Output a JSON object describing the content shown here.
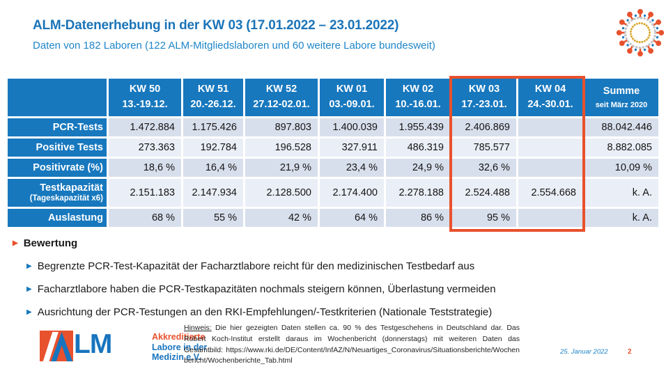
{
  "slide": {
    "title": "ALM-Datenerhebung in der KW 03 (17.01.2022 – 23.01.2022)",
    "subtitle": "Daten von 182 Laboren (122 ALM-Mitgliedslaboren und 60 weitere Labore bundesweit)"
  },
  "table": {
    "columns": [
      {
        "week": "KW 50",
        "dates": "13.-19.12."
      },
      {
        "week": "KW 51",
        "dates": "20.-26.12."
      },
      {
        "week": "KW 52",
        "dates": "27.12-02.01."
      },
      {
        "week": "KW 01",
        "dates": "03.-09.01."
      },
      {
        "week": "KW 02",
        "dates": "10.-16.01."
      },
      {
        "week": "KW 03",
        "dates": "17.-23.01."
      },
      {
        "week": "KW 04",
        "dates": "24.-30.01."
      },
      {
        "week": "Summe",
        "dates": "seit März 2020"
      }
    ],
    "rows": [
      {
        "label": "PCR-Tests",
        "values": [
          "1.472.884",
          "1.175.426",
          "897.803",
          "1.400.039",
          "1.955.439",
          "2.406.869",
          "",
          "88.042.446"
        ]
      },
      {
        "label": "Positive Tests",
        "values": [
          "273.363",
          "192.784",
          "196.528",
          "327.911",
          "486.319",
          "785.577",
          "",
          "8.882.085"
        ]
      },
      {
        "label": "Positivrate (%)",
        "values": [
          "18,6 %",
          "16,4 %",
          "21,9 %",
          "23,4 %",
          "24,9 %",
          "32,6 %",
          "",
          "10,09 %"
        ]
      },
      {
        "label": "Testkapazität",
        "sublabel": "(Tageskapazität x6)",
        "values": [
          "2.151.183",
          "2.147.934",
          "2.128.500",
          "2.174.400",
          "2.278.188",
          "2.524.488",
          "2.554.668",
          "k. A."
        ]
      },
      {
        "label": "Auslastung",
        "values": [
          "68 %",
          "55 %",
          "42 %",
          "64 %",
          "86 %",
          "95 %",
          "",
          "k. A."
        ]
      }
    ],
    "highlight": {
      "columns": [
        "KW 03",
        "KW 04"
      ],
      "color": "#E8512D"
    }
  },
  "bewertung": {
    "heading": "Bewertung",
    "bullets": [
      "Begrenzte PCR-Test-Kapazität der Facharztlabore reicht für den medizinischen Testbedarf aus",
      "Facharztlabore haben die PCR-Testkapazitäten nochmals steigern können, Überlastung vermeiden",
      "Ausrichtung der PCR-Testungen an den RKI-Empfehlungen/-Testkriterien (Nationale Teststrategie)"
    ]
  },
  "footer": {
    "logo": {
      "mark": "A",
      "letters": "LM",
      "line1": "Akkreditierte",
      "line2": "Labore in der",
      "line3": "Medizin e.V."
    },
    "note_label": "Hinweis:",
    "note_text": "Die hier gezeigten Daten stellen ca. 90 % des Testgeschehens in Deutschland dar. Das Robert Koch-Institut erstellt daraus im Wochenbericht (donnerstags) mit weiteren Daten das Gesamtbild:",
    "note_url": "https://www.rki.de/DE/Content/InfAZ/N/Neuartiges_Coronavirus/Situationsberichte/Wochenbericht/Wochenberichte_Tab.html",
    "date": "25. Januar 2022",
    "page": "2"
  },
  "colors": {
    "table_blue": "#1778BE",
    "title_blue": "#1B74B8",
    "subtitle_blue": "#1E86C8",
    "band_dark": "#D8DFEC",
    "band_light": "#EAEEF6",
    "highlight_orange": "#E8512D",
    "virus_red": "#E8512D",
    "virus_gold": "#D9A62A",
    "virus_gray": "#C6C6C6",
    "virus_blue": "#1778BE"
  }
}
